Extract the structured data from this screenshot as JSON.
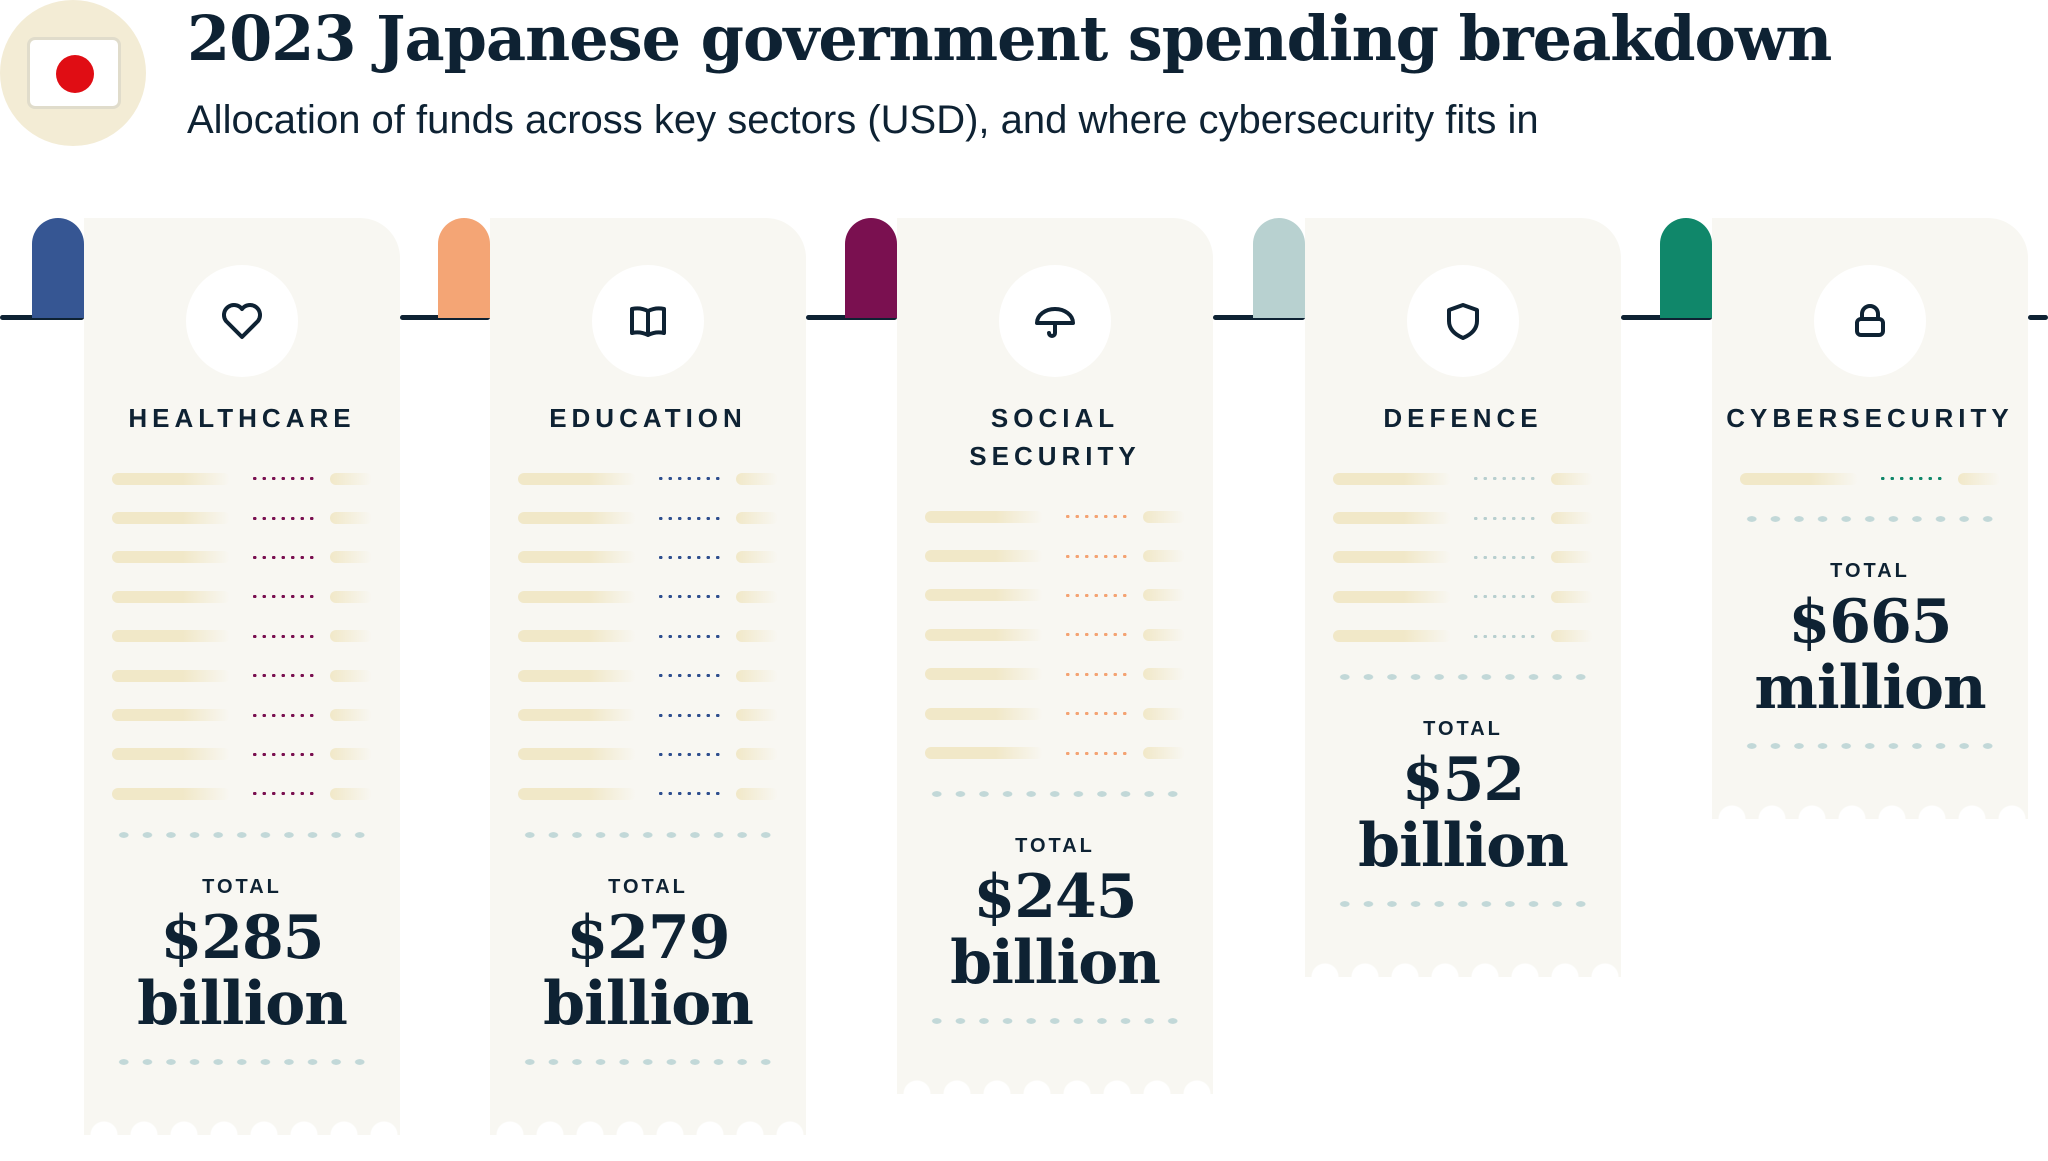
{
  "header": {
    "title": "2023 Japanese government spending breakdown",
    "subtitle": "Allocation of funds across key sectors (USD), and where cybersecurity fits in",
    "flag_icon": "japan-flag-icon"
  },
  "total_label": "TOTAL",
  "cards": [
    {
      "label": [
        "HEALTHCARE"
      ],
      "icon": "heart-icon",
      "accent": "#365693",
      "dots": "#7a1050",
      "amount": [
        "$285",
        "billion"
      ]
    },
    {
      "label": [
        "EDUCATION"
      ],
      "icon": "book-icon",
      "accent": "#f4a575",
      "dots": "#2f4f8f",
      "amount": [
        "$279",
        "billion"
      ]
    },
    {
      "label": [
        "SOCIAL",
        "SECURITY"
      ],
      "icon": "umbrella-icon",
      "accent": "#7a1050",
      "dots": "#f4a373",
      "amount": [
        "$245",
        "billion"
      ]
    },
    {
      "label": [
        "DEFENCE"
      ],
      "icon": "shield-icon",
      "accent": "#b8d1d0",
      "dots": "#b8cfcf",
      "amount": [
        "$52",
        "billion"
      ]
    },
    {
      "label": [
        "CYBERSECURITY"
      ],
      "icon": "lock-icon",
      "accent": "#10876a",
      "dots": "#10876a",
      "amount": [
        "$665",
        "million"
      ]
    }
  ]
}
